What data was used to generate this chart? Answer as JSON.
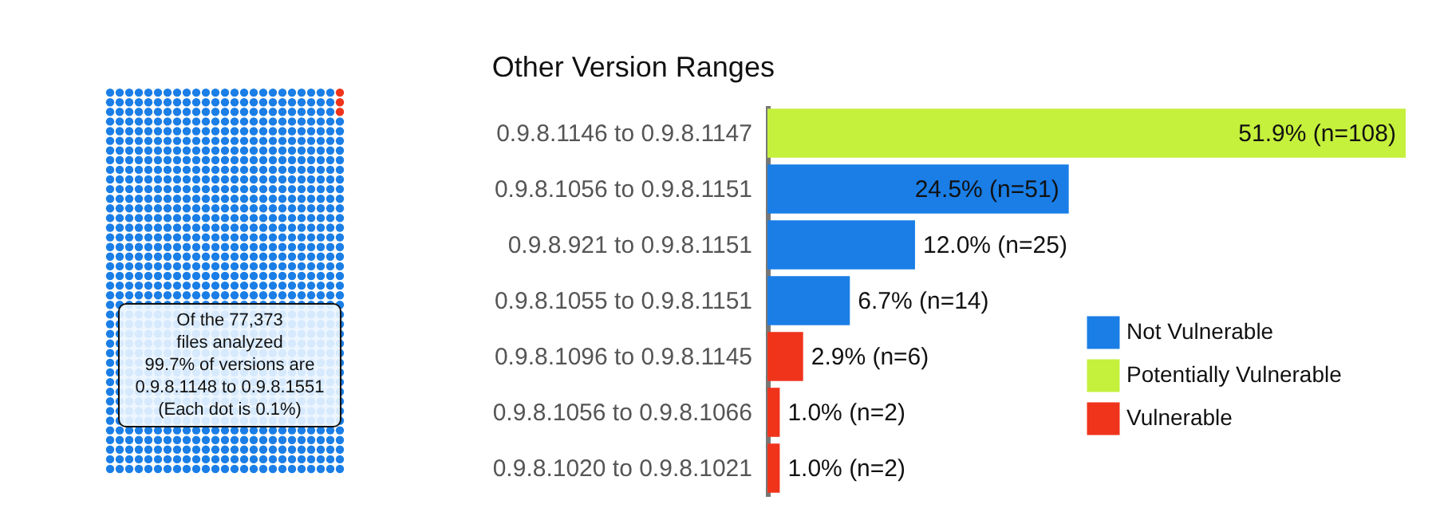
{
  "chart_data": [
    {
      "type": "other",
      "colors": [
        "#1a7ee6",
        "#f0341c"
      ],
      "annotations": [
        "Of the 77,373",
        "files analyzed",
        "99.7% of versions are",
        "0.9.8.1148 to 0.9.8.1551",
        "(Each dot is 0.1%)"
      ]
    },
    {
      "type": "bar",
      "orientation": "horizontal",
      "title": "Other Version Ranges",
      "categories": [
        "0.9.8.1146 to 0.9.8.1147",
        "0.9.8.1056 to 0.9.8.1151",
        "0.9.8.921 to 0.9.8.1151",
        "0.9.8.1055 to 0.9.8.1151",
        "0.9.8.1096 to 0.9.8.1145",
        "0.9.8.1056 to 0.9.8.1066",
        "0.9.8.1020 to 0.9.8.1021"
      ],
      "series": [
        {
          "name": "Not Vulnerable",
          "color": "#1a7ee6",
          "values": [
            null,
            24.5,
            12.0,
            6.7,
            null,
            null,
            null
          ],
          "value_labels": [
            null,
            "24.5% (n=51)",
            "12.0% (n=25)",
            "6.7% (n=14)",
            null,
            null,
            null
          ]
        },
        {
          "name": "Potentially Vulnerable",
          "color": "#c5f03c",
          "values": [
            51.9,
            null,
            null,
            null,
            null,
            null,
            null
          ],
          "value_labels": [
            "51.9% (n=108)",
            null,
            null,
            null,
            null,
            null,
            null
          ]
        },
        {
          "name": "Vulnerable",
          "color": "#f0341c",
          "values": [
            null,
            null,
            null,
            null,
            2.9,
            1.0,
            1.0
          ],
          "value_labels": [
            null,
            null,
            null,
            null,
            "2.9% (n=6)",
            "1.0% (n=2)",
            "1.0% (n=2)"
          ]
        }
      ],
      "legend": "bottom right"
    }
  ]
}
